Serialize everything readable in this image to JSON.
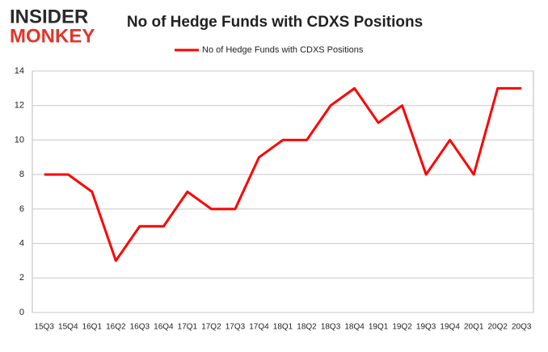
{
  "logo": {
    "line1": "INSIDER",
    "line2": "MONKEY"
  },
  "chart_data": {
    "type": "line",
    "title": "No of Hedge Funds with CDXS Positions",
    "categories": [
      "15Q3",
      "15Q4",
      "16Q1",
      "16Q2",
      "16Q3",
      "16Q4",
      "17Q1",
      "17Q2",
      "17Q3",
      "17Q4",
      "18Q1",
      "18Q2",
      "18Q3",
      "18Q4",
      "19Q1",
      "19Q2",
      "19Q3",
      "19Q4",
      "20Q1",
      "20Q2",
      "20Q3"
    ],
    "series": [
      {
        "name": "No of Hedge Funds with CDXS Positions",
        "color": "#ff0000",
        "values": [
          8,
          8,
          7,
          3,
          5,
          5,
          7,
          6,
          6,
          9,
          10,
          10,
          12,
          13,
          11,
          12,
          8,
          10,
          8,
          13,
          13
        ]
      }
    ],
    "ylim": [
      0,
      14
    ],
    "yticks": [
      0,
      2,
      4,
      6,
      8,
      10,
      12,
      14
    ],
    "grid": true,
    "legend": "top"
  }
}
